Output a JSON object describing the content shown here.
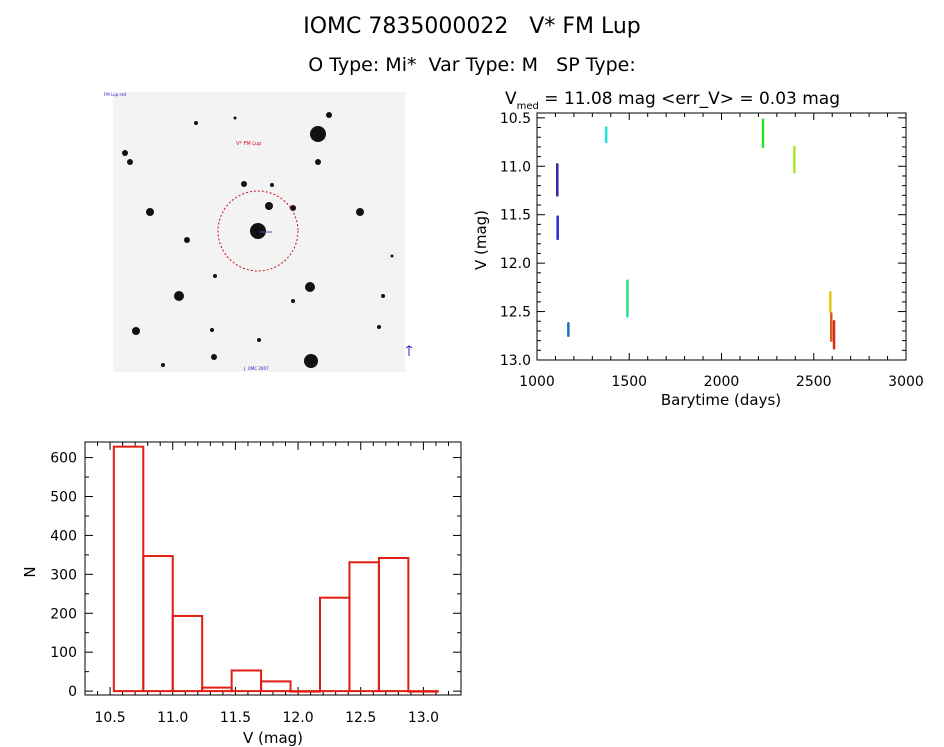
{
  "header": {
    "line1": "IOMC 7835000022   V* FM Lup",
    "line2": "O Type: Mi*  Var Type: M   SP Type:"
  },
  "finder_chart": {
    "target_label": "V* FM Lup",
    "corner_tl": "FM Lup red",
    "bottom_center": "J. OMC 2007"
  },
  "chart_data": [
    {
      "type": "scatter",
      "name": "light-curve",
      "title_main": "V",
      "title_sub": "med",
      "title_rest": " = 11.08 mag <err_V> = 0.03 mag",
      "xlabel": "Barytime (days)",
      "ylabel": "V (mag)",
      "xlim": [
        1000,
        3000
      ],
      "ylim": [
        13.0,
        10.45
      ],
      "xticks": [
        1000,
        1500,
        2000,
        2500,
        3000
      ],
      "yticks": [
        10.5,
        11.0,
        11.5,
        12.0,
        12.5,
        13.0
      ],
      "ytick_labels": [
        "10.5",
        "11.0",
        "11.5",
        "12.0",
        "12.5",
        "13.0"
      ],
      "series": [
        {
          "name": "s1",
          "color": "#3d1ea0",
          "x": 1110,
          "v_min": 10.98,
          "v_max": 11.3
        },
        {
          "name": "s2",
          "color": "#2a2ad0",
          "x": 1112,
          "v_min": 11.52,
          "v_max": 11.75
        },
        {
          "name": "s3",
          "color": "#1e6ec8",
          "x": 1170,
          "v_min": 12.62,
          "v_max": 12.75
        },
        {
          "name": "s4",
          "color": "#22e0e0",
          "x": 1375,
          "v_min": 10.6,
          "v_max": 10.75
        },
        {
          "name": "s5",
          "color": "#28e08c",
          "x": 1490,
          "v_min": 12.18,
          "v_max": 12.55
        },
        {
          "name": "s6",
          "color": "#2ee02e",
          "x": 2225,
          "v_min": 10.52,
          "v_max": 10.8
        },
        {
          "name": "s7",
          "color": "#a8e628",
          "x": 2395,
          "v_min": 10.8,
          "v_max": 11.06
        },
        {
          "name": "s8",
          "color": "#ecc414",
          "x": 2590,
          "v_min": 12.3,
          "v_max": 12.5
        },
        {
          "name": "s9",
          "color": "#e0581a",
          "x": 2595,
          "v_min": 12.52,
          "v_max": 12.8
        },
        {
          "name": "s10",
          "color": "#d43018",
          "x": 2610,
          "v_min": 12.6,
          "v_max": 12.88
        }
      ]
    },
    {
      "type": "bar",
      "name": "histogram",
      "style": "step-outline",
      "xlabel": "V (mag)",
      "ylabel": "N",
      "xlim": [
        10.3,
        13.3
      ],
      "ylim": [
        -10,
        640
      ],
      "xticks": [
        10.5,
        11.0,
        11.5,
        12.0,
        12.5,
        13.0
      ],
      "xtick_labels": [
        "10.5",
        "11.0",
        "11.5",
        "12.0",
        "12.5",
        "13.0"
      ],
      "yticks": [
        0,
        100,
        200,
        300,
        400,
        500,
        600
      ],
      "yticks_labels": [
        "0",
        "100",
        "200",
        "300",
        "400",
        "500",
        "600"
      ],
      "bin_start": 10.53,
      "bin_width": 0.235,
      "values": [
        628,
        347,
        193,
        9,
        53,
        25,
        0,
        240,
        331,
        342,
        0
      ],
      "color": "#e01e14"
    }
  ]
}
